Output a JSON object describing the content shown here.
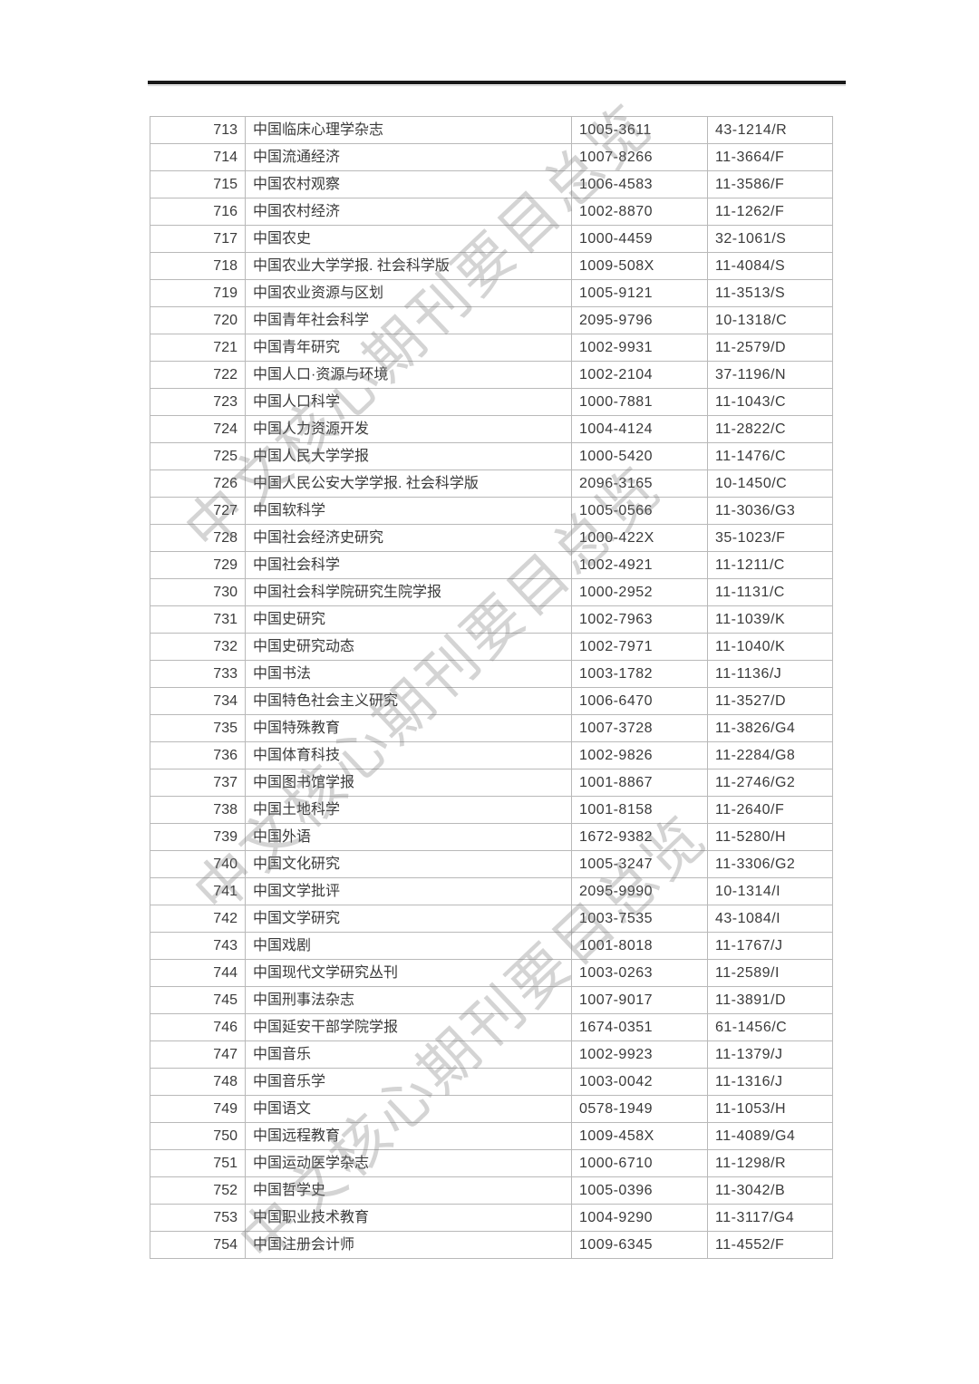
{
  "page": {
    "background": "#ffffff",
    "divider_color": "#1a1a1a"
  },
  "watermark": {
    "text": "中文核心期刊要目总览",
    "color": "rgba(122,122,122,0.32)"
  },
  "table": {
    "border_color": "#b9b9b9",
    "text_color": "#3a3a3a",
    "rows": [
      {
        "no": "713",
        "title": "中国临床心理学杂志",
        "issn": "1005-3611",
        "cn": "43-1214/R"
      },
      {
        "no": "714",
        "title": "中国流通经济",
        "issn": "1007-8266",
        "cn": "11-3664/F"
      },
      {
        "no": "715",
        "title": "中国农村观察",
        "issn": "1006-4583",
        "cn": "11-3586/F"
      },
      {
        "no": "716",
        "title": "中国农村经济",
        "issn": "1002-8870",
        "cn": "11-1262/F"
      },
      {
        "no": "717",
        "title": "中国农史",
        "issn": "1000-4459",
        "cn": "32-1061/S"
      },
      {
        "no": "718",
        "title": "中国农业大学学报. 社会科学版",
        "issn": "1009-508X",
        "cn": "11-4084/S"
      },
      {
        "no": "719",
        "title": "中国农业资源与区划",
        "issn": "1005-9121",
        "cn": "11-3513/S"
      },
      {
        "no": "720",
        "title": "中国青年社会科学",
        "issn": "2095-9796",
        "cn": "10-1318/C"
      },
      {
        "no": "721",
        "title": "中国青年研究",
        "issn": "1002-9931",
        "cn": "11-2579/D"
      },
      {
        "no": "722",
        "title": "中国人口·资源与环境",
        "issn": "1002-2104",
        "cn": "37-1196/N"
      },
      {
        "no": "723",
        "title": "中国人口科学",
        "issn": "1000-7881",
        "cn": "11-1043/C"
      },
      {
        "no": "724",
        "title": "中国人力资源开发",
        "issn": "1004-4124",
        "cn": "11-2822/C"
      },
      {
        "no": "725",
        "title": "中国人民大学学报",
        "issn": "1000-5420",
        "cn": "11-1476/C"
      },
      {
        "no": "726",
        "title": "中国人民公安大学学报. 社会科学版",
        "issn": "2096-3165",
        "cn": "10-1450/C"
      },
      {
        "no": "727",
        "title": "中国软科学",
        "issn": "1005-0566",
        "cn": "11-3036/G3"
      },
      {
        "no": "728",
        "title": "中国社会经济史研究",
        "issn": "1000-422X",
        "cn": "35-1023/F"
      },
      {
        "no": "729",
        "title": "中国社会科学",
        "issn": "1002-4921",
        "cn": "11-1211/C"
      },
      {
        "no": "730",
        "title": "中国社会科学院研究生院学报",
        "issn": "1000-2952",
        "cn": "11-1131/C"
      },
      {
        "no": "731",
        "title": "中国史研究",
        "issn": "1002-7963",
        "cn": "11-1039/K"
      },
      {
        "no": "732",
        "title": "中国史研究动态",
        "issn": "1002-7971",
        "cn": "11-1040/K"
      },
      {
        "no": "733",
        "title": "中国书法",
        "issn": "1003-1782",
        "cn": "11-1136/J"
      },
      {
        "no": "734",
        "title": "中国特色社会主义研究",
        "issn": "1006-6470",
        "cn": "11-3527/D"
      },
      {
        "no": "735",
        "title": "中国特殊教育",
        "issn": "1007-3728",
        "cn": "11-3826/G4"
      },
      {
        "no": "736",
        "title": "中国体育科技",
        "issn": "1002-9826",
        "cn": "11-2284/G8"
      },
      {
        "no": "737",
        "title": "中国图书馆学报",
        "issn": "1001-8867",
        "cn": "11-2746/G2"
      },
      {
        "no": "738",
        "title": "中国土地科学",
        "issn": "1001-8158",
        "cn": "11-2640/F"
      },
      {
        "no": "739",
        "title": "中国外语",
        "issn": "1672-9382",
        "cn": "11-5280/H"
      },
      {
        "no": "740",
        "title": "中国文化研究",
        "issn": "1005-3247",
        "cn": "11-3306/G2"
      },
      {
        "no": "741",
        "title": "中国文学批评",
        "issn": "2095-9990",
        "cn": "10-1314/I"
      },
      {
        "no": "742",
        "title": "中国文学研究",
        "issn": "1003-7535",
        "cn": "43-1084/I"
      },
      {
        "no": "743",
        "title": "中国戏剧",
        "issn": "1001-8018",
        "cn": "11-1767/J"
      },
      {
        "no": "744",
        "title": "中国现代文学研究丛刊",
        "issn": "1003-0263",
        "cn": "11-2589/I"
      },
      {
        "no": "745",
        "title": "中国刑事法杂志",
        "issn": "1007-9017",
        "cn": "11-3891/D"
      },
      {
        "no": "746",
        "title": "中国延安干部学院学报",
        "issn": "1674-0351",
        "cn": "61-1456/C"
      },
      {
        "no": "747",
        "title": "中国音乐",
        "issn": "1002-9923",
        "cn": "11-1379/J"
      },
      {
        "no": "748",
        "title": "中国音乐学",
        "issn": "1003-0042",
        "cn": "11-1316/J"
      },
      {
        "no": "749",
        "title": "中国语文",
        "issn": "0578-1949",
        "cn": "11-1053/H"
      },
      {
        "no": "750",
        "title": "中国远程教育",
        "issn": "1009-458X",
        "cn": "11-4089/G4"
      },
      {
        "no": "751",
        "title": "中国运动医学杂志",
        "issn": "1000-6710",
        "cn": "11-1298/R"
      },
      {
        "no": "752",
        "title": "中国哲学史",
        "issn": "1005-0396",
        "cn": "11-3042/B"
      },
      {
        "no": "753",
        "title": "中国职业技术教育",
        "issn": "1004-9290",
        "cn": "11-3117/G4"
      },
      {
        "no": "754",
        "title": "中国注册会计师",
        "issn": "1009-6345",
        "cn": "11-4552/F"
      }
    ]
  }
}
